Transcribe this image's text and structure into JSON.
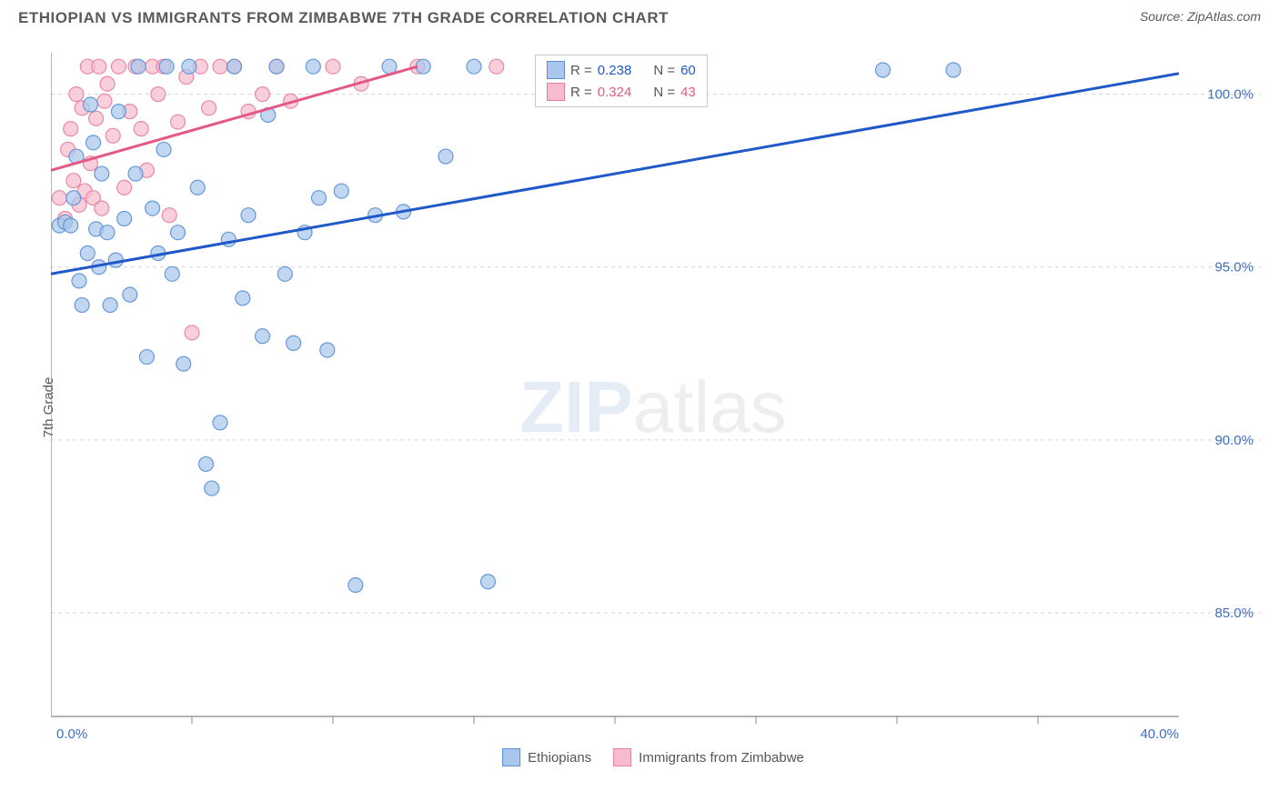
{
  "header": {
    "title": "ETHIOPIAN VS IMMIGRANTS FROM ZIMBABWE 7TH GRADE CORRELATION CHART",
    "source_prefix": "Source: ",
    "source_name": "ZipAtlas.com"
  },
  "chart": {
    "type": "scatter",
    "ylabel": "7th Grade",
    "watermark_z": "ZIP",
    "watermark_rest": "atlas",
    "x_domain": [
      0,
      40
    ],
    "y_domain": [
      82,
      101.2
    ],
    "plot_background": "#ffffff",
    "axis_color": "#888888",
    "grid_color": "#d4d4d4",
    "grid_dash": "4,4",
    "ytick_labels": [
      "85.0%",
      "90.0%",
      "95.0%",
      "100.0%"
    ],
    "ytick_values": [
      85,
      90,
      95,
      100
    ],
    "xtick_labels": [
      "0.0%",
      "40.0%"
    ],
    "xtick_values": [
      0,
      40
    ],
    "xtick_minor": [
      5,
      10,
      15,
      20,
      25,
      30,
      35
    ],
    "series": [
      {
        "id": "ethiopians",
        "label": "Ethiopians",
        "marker_fill": "#a9c7ec",
        "marker_stroke": "#5a8fd6",
        "marker_r": 8,
        "marker_opacity": 0.72,
        "line_color": "#1f58c7",
        "line_width": 3,
        "trend": {
          "x1": 0,
          "y1": 94.8,
          "x2": 40,
          "y2": 100.6
        },
        "R_label": "R = ",
        "R_val": "0.238",
        "N_label": "N = ",
        "N_val": "60",
        "legend_fill": "#a9c7ec",
        "legend_stroke": "#5a8fd6",
        "points": [
          [
            0.3,
            96.2
          ],
          [
            0.5,
            96.3
          ],
          [
            0.7,
            96.2
          ],
          [
            0.8,
            97.0
          ],
          [
            0.9,
            98.2
          ],
          [
            1.0,
            94.6
          ],
          [
            1.1,
            93.9
          ],
          [
            1.3,
            95.4
          ],
          [
            1.4,
            99.7
          ],
          [
            1.5,
            98.6
          ],
          [
            1.6,
            96.1
          ],
          [
            1.7,
            95.0
          ],
          [
            1.8,
            97.7
          ],
          [
            2.0,
            96.0
          ],
          [
            2.1,
            93.9
          ],
          [
            2.3,
            95.2
          ],
          [
            2.4,
            99.5
          ],
          [
            2.6,
            96.4
          ],
          [
            2.8,
            94.2
          ],
          [
            3.0,
            97.7
          ],
          [
            3.1,
            100.8
          ],
          [
            3.4,
            92.4
          ],
          [
            3.6,
            96.7
          ],
          [
            3.8,
            95.4
          ],
          [
            4.0,
            98.4
          ],
          [
            4.1,
            100.8
          ],
          [
            4.3,
            94.8
          ],
          [
            4.5,
            96.0
          ],
          [
            4.7,
            92.2
          ],
          [
            4.9,
            100.8
          ],
          [
            5.2,
            97.3
          ],
          [
            5.5,
            89.3
          ],
          [
            5.7,
            88.6
          ],
          [
            6.0,
            90.5
          ],
          [
            6.3,
            95.8
          ],
          [
            6.5,
            100.8
          ],
          [
            6.8,
            94.1
          ],
          [
            7.0,
            96.5
          ],
          [
            7.5,
            93.0
          ],
          [
            7.7,
            99.4
          ],
          [
            8.0,
            100.8
          ],
          [
            8.3,
            94.8
          ],
          [
            8.6,
            92.8
          ],
          [
            9.0,
            96.0
          ],
          [
            9.3,
            100.8
          ],
          [
            9.5,
            97.0
          ],
          [
            9.8,
            92.6
          ],
          [
            10.3,
            97.2
          ],
          [
            10.8,
            85.8
          ],
          [
            11.5,
            96.5
          ],
          [
            12.0,
            100.8
          ],
          [
            12.5,
            96.6
          ],
          [
            13.2,
            100.8
          ],
          [
            14.0,
            98.2
          ],
          [
            15.0,
            100.8
          ],
          [
            15.5,
            85.9
          ],
          [
            18.0,
            100.8
          ],
          [
            20.0,
            100.8
          ],
          [
            29.5,
            100.7
          ],
          [
            32.0,
            100.7
          ]
        ]
      },
      {
        "id": "zimbabwe",
        "label": "Immigrants from Zimbabwe",
        "marker_fill": "#f6bccd",
        "marker_stroke": "#e87da0",
        "marker_r": 8,
        "marker_opacity": 0.72,
        "line_color": "#e45884",
        "line_width": 3,
        "trend": {
          "x1": 0,
          "y1": 97.8,
          "x2": 13,
          "y2": 100.8
        },
        "R_label": "R = ",
        "R_val": "0.324",
        "N_label": "N = ",
        "N_val": "43",
        "legend_fill": "#f6bccd",
        "legend_stroke": "#e87da0",
        "points": [
          [
            0.3,
            97.0
          ],
          [
            0.5,
            96.4
          ],
          [
            0.6,
            98.4
          ],
          [
            0.7,
            99.0
          ],
          [
            0.8,
            97.5
          ],
          [
            0.9,
            100.0
          ],
          [
            1.0,
            96.8
          ],
          [
            1.1,
            99.6
          ],
          [
            1.2,
            97.2
          ],
          [
            1.3,
            100.8
          ],
          [
            1.4,
            98.0
          ],
          [
            1.5,
            97.0
          ],
          [
            1.6,
            99.3
          ],
          [
            1.7,
            100.8
          ],
          [
            1.8,
            96.7
          ],
          [
            1.9,
            99.8
          ],
          [
            2.0,
            100.3
          ],
          [
            2.2,
            98.8
          ],
          [
            2.4,
            100.8
          ],
          [
            2.6,
            97.3
          ],
          [
            2.8,
            99.5
          ],
          [
            3.0,
            100.8
          ],
          [
            3.2,
            99.0
          ],
          [
            3.4,
            97.8
          ],
          [
            3.6,
            100.8
          ],
          [
            3.8,
            100.0
          ],
          [
            4.0,
            100.8
          ],
          [
            4.2,
            96.5
          ],
          [
            4.5,
            99.2
          ],
          [
            4.8,
            100.5
          ],
          [
            5.0,
            93.1
          ],
          [
            5.3,
            100.8
          ],
          [
            5.6,
            99.6
          ],
          [
            6.0,
            100.8
          ],
          [
            6.5,
            100.8
          ],
          [
            7.0,
            99.5
          ],
          [
            7.5,
            100.0
          ],
          [
            8.0,
            100.8
          ],
          [
            8.5,
            99.8
          ],
          [
            10.0,
            100.8
          ],
          [
            11.0,
            100.3
          ],
          [
            13.0,
            100.8
          ],
          [
            15.8,
            100.8
          ]
        ]
      }
    ]
  }
}
